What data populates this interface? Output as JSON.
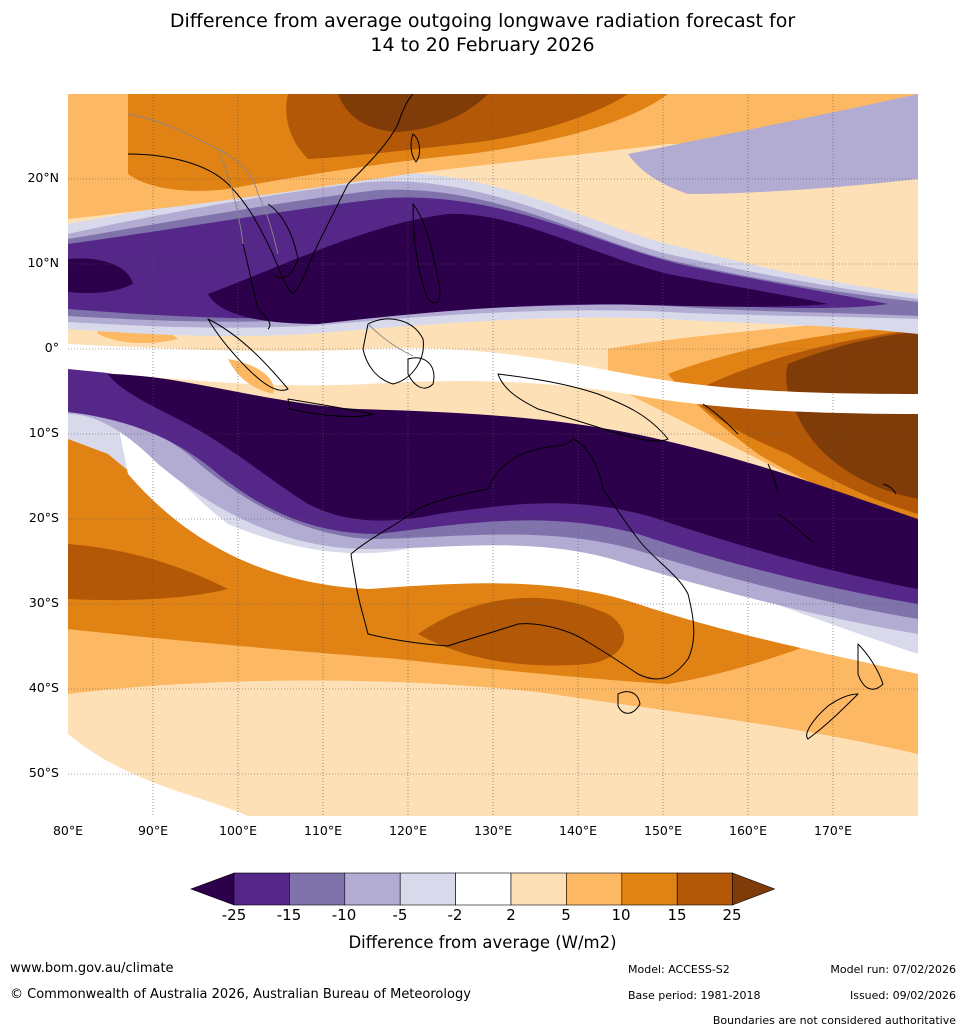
{
  "title": {
    "line1": "Difference from average outgoing longwave radiation forecast for",
    "line2": "14 to 20 February 2026"
  },
  "map": {
    "projection": "equirectangular",
    "lon_range": [
      80,
      180
    ],
    "lat_range": [
      -55,
      30
    ],
    "lat_ticks": [
      {
        "value": 20,
        "label": "20°N"
      },
      {
        "value": 10,
        "label": "10°N"
      },
      {
        "value": 0,
        "label": "0°"
      },
      {
        "value": -10,
        "label": "10°S"
      },
      {
        "value": -20,
        "label": "20°S"
      },
      {
        "value": -30,
        "label": "30°S"
      },
      {
        "value": -40,
        "label": "40°S"
      },
      {
        "value": -50,
        "label": "50°S"
      }
    ],
    "lon_ticks": [
      {
        "value": 80,
        "label": "80°E"
      },
      {
        "value": 90,
        "label": "90°E"
      },
      {
        "value": 100,
        "label": "100°E"
      },
      {
        "value": 110,
        "label": "110°E"
      },
      {
        "value": 120,
        "label": "120°E"
      },
      {
        "value": 130,
        "label": "130°E"
      },
      {
        "value": 140,
        "label": "140°E"
      },
      {
        "value": 150,
        "label": "150°E"
      },
      {
        "value": 160,
        "label": "160°E"
      },
      {
        "value": 170,
        "label": "170°E"
      }
    ]
  },
  "colorbar": {
    "title": "Difference from average (W/m2)",
    "tick_labels": [
      "-25",
      "-15",
      "-10",
      "-5",
      "-2",
      "2",
      "5",
      "10",
      "15",
      "25"
    ],
    "bins": [
      {
        "label": "< -25",
        "color": "#2d004b"
      },
      {
        "label": "-25 to -15",
        "color": "#542788"
      },
      {
        "label": "-15 to -10",
        "color": "#8073ac"
      },
      {
        "label": "-10 to -5",
        "color": "#b2abd2"
      },
      {
        "label": "-5 to -2",
        "color": "#d8daeb"
      },
      {
        "label": "-2 to 2",
        "color": "#ffffff"
      },
      {
        "label": "2 to 5",
        "color": "#fee0b6"
      },
      {
        "label": "5 to 10",
        "color": "#fdb863"
      },
      {
        "label": "10 to 15",
        "color": "#e08214"
      },
      {
        "label": "15 to 25",
        "color": "#b35806"
      },
      {
        "label": "> 25",
        "color": "#7f3b08"
      }
    ]
  },
  "footer": {
    "website": "www.bom.gov.au/climate",
    "copyright": "© Commonwealth of Australia 2026, Australian Bureau of Meteorology",
    "model": "Model: ACCESS-S2",
    "base_period": "Base period: 1981-2018",
    "model_run": "Model run: 07/02/2026",
    "issued": "Issued: 09/02/2026",
    "disclaimer": "Boundaries are not considered authoritative"
  }
}
